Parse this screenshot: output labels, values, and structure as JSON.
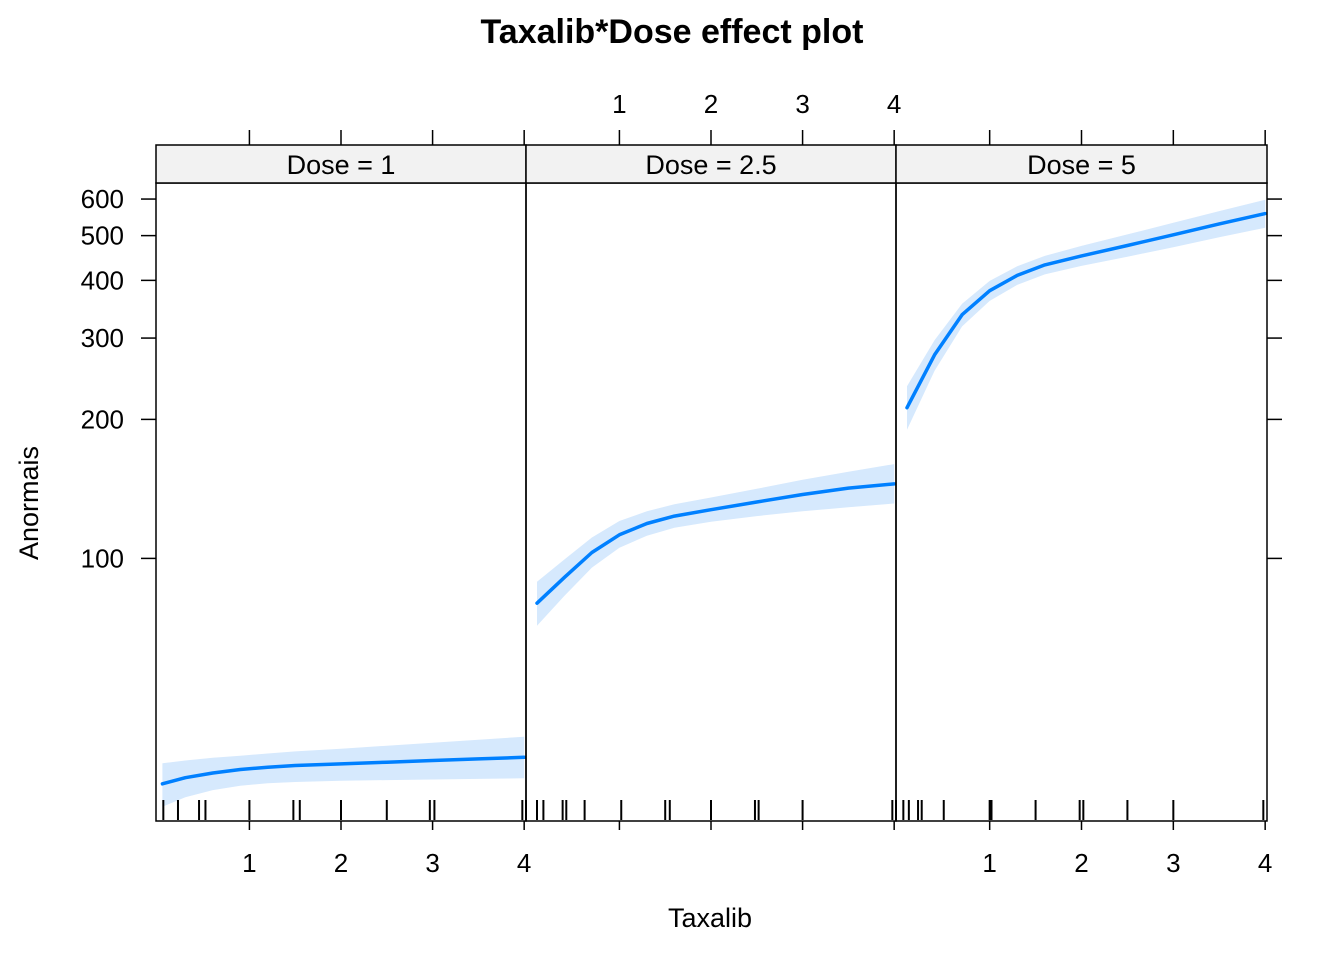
{
  "chart_data": {
    "type": "line",
    "title": "Taxalib*Dose effect plot",
    "xlabel": "Taxalib",
    "ylabel": "Anormais",
    "y_scale": "log",
    "y_ticks": [
      100,
      200,
      300,
      400,
      500,
      600
    ],
    "x_ticks": [
      1,
      2,
      3,
      4
    ],
    "xlim": [
      -0.02,
      4.02
    ],
    "ylim": [
      27,
      650
    ],
    "grid": false,
    "legend": "none",
    "colors": {
      "line": "#0080ff",
      "band": "#d6e9fd",
      "strip": "#f2f2f2",
      "frame": "#000000"
    },
    "panels": [
      {
        "strip": "Dose = 1",
        "x": [
          0.05,
          0.3,
          0.6,
          0.9,
          1.2,
          1.5,
          2.0,
          2.5,
          3.0,
          3.5,
          4.0
        ],
        "fit": [
          32.5,
          33.5,
          34.3,
          34.9,
          35.3,
          35.6,
          35.9,
          36.2,
          36.5,
          36.8,
          37.1
        ],
        "lower": [
          29.0,
          30.4,
          31.5,
          32.2,
          32.6,
          32.8,
          33.0,
          33.1,
          33.2,
          33.3,
          33.4
        ],
        "upper": [
          36.0,
          36.5,
          37.0,
          37.4,
          37.8,
          38.2,
          38.7,
          39.3,
          39.9,
          40.5,
          41.1
        ],
        "rug": [
          0.06,
          0.22,
          0.45,
          0.52,
          1.0,
          1.48,
          1.55,
          2.0,
          2.5,
          2.97,
          3.02,
          3.98,
          4.02
        ]
      },
      {
        "strip": "Dose = 2.5",
        "x": [
          0.1,
          0.4,
          0.7,
          1.0,
          1.3,
          1.6,
          2.0,
          2.5,
          3.0,
          3.5,
          4.0
        ],
        "fit": [
          80.0,
          91.0,
          103.0,
          112.5,
          119.0,
          123.5,
          127.5,
          132.5,
          137.5,
          142.0,
          145.0
        ],
        "lower": [
          71.5,
          83.0,
          95.5,
          105.5,
          112.0,
          116.5,
          120.0,
          123.5,
          126.5,
          129.0,
          131.5
        ],
        "upper": [
          89.0,
          99.5,
          111.0,
          120.5,
          126.5,
          131.0,
          135.5,
          141.5,
          148.0,
          154.0,
          160.0
        ],
        "rug": [
          0.1,
          0.17,
          0.38,
          0.42,
          0.62,
          1.02,
          1.5,
          1.55,
          2.0,
          2.48,
          2.52,
          3.0,
          3.98,
          4.02
        ]
      },
      {
        "strip": "Dose = 5",
        "x": [
          0.1,
          0.4,
          0.7,
          1.0,
          1.3,
          1.6,
          2.0,
          2.5,
          3.0,
          3.5,
          4.0
        ],
        "fit": [
          212.0,
          276.0,
          337.0,
          380.0,
          410.0,
          432.0,
          452.0,
          476.0,
          502.0,
          530.0,
          558.0
        ],
        "lower": [
          190.0,
          255.0,
          318.0,
          361.0,
          391.0,
          412.0,
          430.0,
          450.0,
          472.0,
          496.0,
          520.0
        ],
        "upper": [
          236.0,
          297.0,
          356.0,
          399.0,
          429.0,
          452.0,
          475.0,
          503.0,
          533.0,
          565.0,
          598.0
        ],
        "rug": [
          0.06,
          0.12,
          0.22,
          0.26,
          0.5,
          1.0,
          1.02,
          1.5,
          1.98,
          2.02,
          2.5,
          3.0,
          3.98
        ]
      }
    ]
  }
}
